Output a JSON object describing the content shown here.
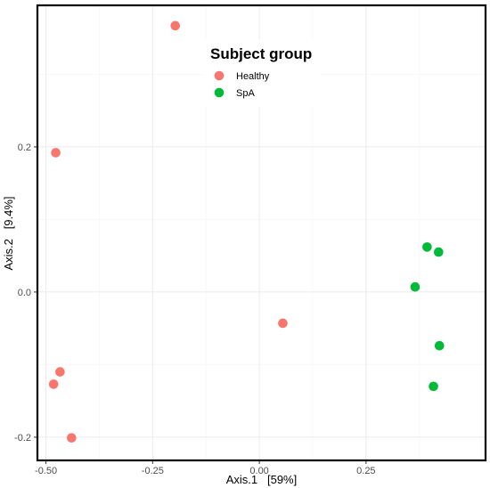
{
  "chart_data": {
    "type": "scatter",
    "title": "",
    "xlabel": "Axis.1   [59%]",
    "ylabel": "Axis.2   [9.4%]",
    "xlim": [
      -0.52,
      0.53
    ],
    "ylim": [
      -0.232,
      0.395
    ],
    "xticks": [
      {
        "value": -0.5,
        "label": "-0.50"
      },
      {
        "value": -0.25,
        "label": "-0.25"
      },
      {
        "value": 0.0,
        "label": "0.00"
      },
      {
        "value": 0.25,
        "label": "0.25"
      }
    ],
    "yticks": [
      {
        "value": -0.2,
        "label": "-0.2"
      },
      {
        "value": 0.0,
        "label": "0.0"
      },
      {
        "value": 0.2,
        "label": "0.2"
      }
    ],
    "grid": true,
    "legend": {
      "title": "Subject group",
      "placement": "top-center",
      "entries": [
        {
          "name": "Healthy",
          "color": "#F8766D"
        },
        {
          "name": "SpA",
          "color": "#00BA38"
        }
      ]
    },
    "series": [
      {
        "name": "Healthy",
        "color": "#F8766D",
        "points": [
          {
            "x": -0.197,
            "y": 0.367
          },
          {
            "x": -0.477,
            "y": 0.192
          },
          {
            "x": 0.055,
            "y": -0.043
          },
          {
            "x": -0.467,
            "y": -0.11
          },
          {
            "x": -0.482,
            "y": -0.127
          },
          {
            "x": -0.44,
            "y": -0.201
          }
        ]
      },
      {
        "name": "SpA",
        "color": "#00BA38",
        "points": [
          {
            "x": 0.393,
            "y": 0.062
          },
          {
            "x": 0.42,
            "y": 0.055
          },
          {
            "x": 0.365,
            "y": 0.007
          },
          {
            "x": 0.422,
            "y": -0.074
          },
          {
            "x": 0.408,
            "y": -0.13
          }
        ]
      }
    ]
  }
}
